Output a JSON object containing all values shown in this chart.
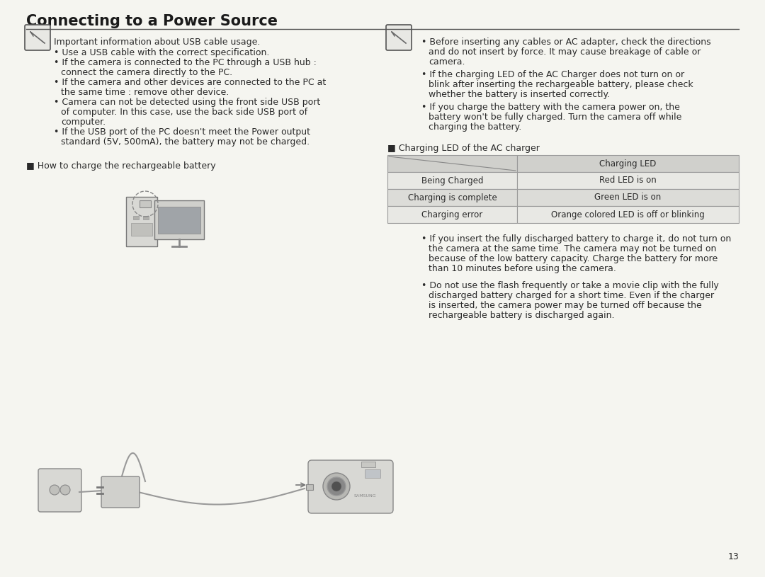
{
  "title": "Connecting to a Power Source",
  "title_fontsize": 15,
  "title_color": "#1a1a1a",
  "bg_color": "#f5f5f0",
  "text_color": "#2a2a2a",
  "page_number": "13",
  "left_note_header": "Important information about USB cable usage.",
  "left_bullets": [
    "Use a USB cable with the correct specification.",
    "If the camera is connected to the PC through a USB hub :\nconnect the camera directly to the PC.",
    "If the camera and other devices are connected to the PC at\nthe same time : remove other device.",
    "Camera can not be detected using the front side USB port\nof computer. In this case, use the back side USB port of\ncomputer.",
    "If the USB port of the PC doesn't meet the Power output\nstandard (5V, 500mA), the battery may not be charged."
  ],
  "right_bullets": [
    "Before inserting any cables or AC adapter, check the directions\nand do not insert by force. It may cause breakage of cable or\ncamera.",
    "If the charging LED of the AC Charger does not turn on or\nblink after inserting the rechargeable battery, please check\nwhether the battery is inserted correctly.",
    "If you charge the battery with the camera power on, the\nbattery won't be fully charged. Turn the camera off while\ncharging the battery."
  ],
  "how_to_charge_label": "■ How to charge the rechargeable battery",
  "charging_led_label": "■ Charging LED of the AC charger",
  "table_header_right": "Charging LED",
  "table_rows": [
    [
      "Being Charged",
      "Red LED is on"
    ],
    [
      "Charging is complete",
      "Green LED is on"
    ],
    [
      "Charging error",
      "Orange colored LED is off or blinking"
    ]
  ],
  "table_bg_header": "#d0d0cc",
  "table_bg_row1": "#e8e8e4",
  "table_bg_row2": "#dcdcd8",
  "table_border_color": "#999999",
  "bottom_bullets": [
    "If you insert the fully discharged battery to charge it, do not turn on\nthe camera at the same time. The camera may not be turned on\nbecause of the low battery capacity. Charge the battery for more\nthan 10 minutes before using the camera.",
    "Do not use the flash frequently or take a movie clip with the fully\ndischarged battery charged for a short time. Even if the charger\nis inserted, the camera power may be turned off because the\nrechargeable battery is discharged again."
  ]
}
